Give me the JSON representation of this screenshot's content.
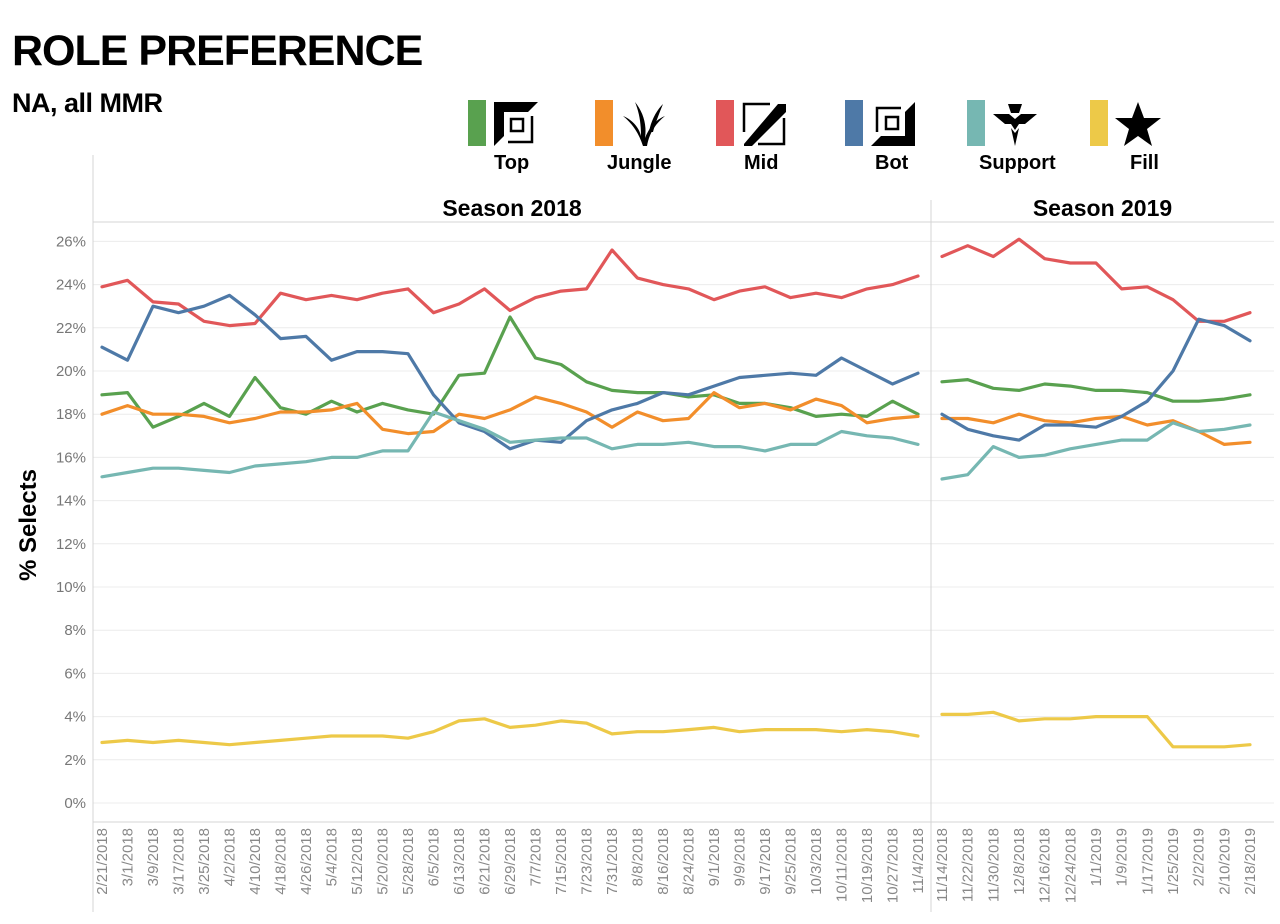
{
  "header": {
    "title": "ROLE PREFERENCE",
    "subtitle": "NA, all MMR"
  },
  "legend": [
    {
      "name": "Top",
      "color": "#59a14f",
      "icon": "top-lane-icon"
    },
    {
      "name": "Jungle",
      "color": "#f28e2b",
      "icon": "jungle-icon"
    },
    {
      "name": "Mid",
      "color": "#e15759",
      "icon": "mid-lane-icon"
    },
    {
      "name": "Bot",
      "color": "#4e79a7",
      "icon": "bot-lane-icon"
    },
    {
      "name": "Support",
      "color": "#76b7b2",
      "icon": "support-icon"
    },
    {
      "name": "Fill",
      "color": "#edc948",
      "icon": "star-icon"
    }
  ],
  "chart_data": {
    "type": "line",
    "ylabel": "% Selects",
    "ylim": [
      0,
      27
    ],
    "yticks": [
      "0%",
      "2%",
      "4%",
      "6%",
      "8%",
      "10%",
      "12%",
      "14%",
      "16%",
      "18%",
      "20%",
      "22%",
      "24%",
      "26%"
    ],
    "grid": true,
    "panels": [
      {
        "name": "Season 2018",
        "x": [
          "2/21/2018",
          "3/1/2018",
          "3/9/2018",
          "3/17/2018",
          "3/25/2018",
          "4/2/2018",
          "4/10/2018",
          "4/18/2018",
          "4/26/2018",
          "5/4/2018",
          "5/12/2018",
          "5/20/2018",
          "5/28/2018",
          "6/5/2018",
          "6/13/2018",
          "6/21/2018",
          "6/29/2018",
          "7/7/2018",
          "7/15/2018",
          "7/23/2018",
          "7/31/2018",
          "8/8/2018",
          "8/16/2018",
          "8/24/2018",
          "9/1/2018",
          "9/9/2018",
          "9/17/2018",
          "9/25/2018",
          "10/3/2018",
          "10/11/2018",
          "10/19/2018",
          "10/27/2018",
          "11/4/2018"
        ],
        "series": [
          {
            "name": "Top",
            "values": [
              18.9,
              19.0,
              17.4,
              17.9,
              18.5,
              17.9,
              19.7,
              18.3,
              18.0,
              18.6,
              18.1,
              18.5,
              18.2,
              18.0,
              19.8,
              19.9,
              22.5,
              20.6,
              20.3,
              19.5,
              19.1,
              19.0,
              19.0,
              18.8,
              18.9,
              18.5,
              18.5,
              18.3,
              17.9,
              18.0,
              17.9,
              18.6,
              18.0
            ]
          },
          {
            "name": "Jungle",
            "values": [
              18.0,
              18.4,
              18.0,
              18.0,
              17.9,
              17.6,
              17.8,
              18.1,
              18.1,
              18.2,
              18.5,
              17.3,
              17.1,
              17.2,
              18.0,
              17.8,
              18.2,
              18.8,
              18.5,
              18.1,
              17.4,
              18.1,
              17.7,
              17.8,
              19.0,
              18.3,
              18.5,
              18.2,
              18.7,
              18.4,
              17.6,
              17.8,
              17.9
            ]
          },
          {
            "name": "Mid",
            "values": [
              23.9,
              24.2,
              23.2,
              23.1,
              22.3,
              22.1,
              22.2,
              23.6,
              23.3,
              23.5,
              23.3,
              23.6,
              23.8,
              22.7,
              23.1,
              23.8,
              22.8,
              23.4,
              23.7,
              23.8,
              25.6,
              24.3,
              24.0,
              23.8,
              23.3,
              23.7,
              23.9,
              23.4,
              23.6,
              23.4,
              23.8,
              24.0,
              24.4
            ]
          },
          {
            "name": "Bot",
            "values": [
              21.1,
              20.5,
              23.0,
              22.7,
              23.0,
              23.5,
              22.6,
              21.5,
              21.6,
              20.5,
              20.9,
              20.9,
              20.8,
              18.9,
              17.6,
              17.2,
              16.4,
              16.8,
              16.7,
              17.7,
              18.2,
              18.5,
              19.0,
              18.9,
              19.3,
              19.7,
              19.8,
              19.9,
              19.8,
              20.6,
              20.0,
              19.4,
              19.9
            ]
          },
          {
            "name": "Support",
            "values": [
              15.1,
              15.3,
              15.5,
              15.5,
              15.4,
              15.3,
              15.6,
              15.7,
              15.8,
              16.0,
              16.0,
              16.3,
              16.3,
              18.1,
              17.7,
              17.3,
              16.7,
              16.8,
              16.9,
              16.9,
              16.4,
              16.6,
              16.6,
              16.7,
              16.5,
              16.5,
              16.3,
              16.6,
              16.6,
              17.2,
              17.0,
              16.9,
              16.6
            ]
          },
          {
            "name": "Fill",
            "values": [
              2.8,
              2.9,
              2.8,
              2.9,
              2.8,
              2.7,
              2.8,
              2.9,
              3.0,
              3.1,
              3.1,
              3.1,
              3.0,
              3.3,
              3.8,
              3.9,
              3.5,
              3.6,
              3.8,
              3.7,
              3.2,
              3.3,
              3.3,
              3.4,
              3.5,
              3.3,
              3.4,
              3.4,
              3.4,
              3.3,
              3.4,
              3.3,
              3.1
            ]
          }
        ]
      },
      {
        "name": "Season 2019",
        "x": [
          "11/14/2018",
          "11/22/2018",
          "11/30/2018",
          "12/8/2018",
          "12/16/2018",
          "12/24/2018",
          "1/1/2019",
          "1/9/2019",
          "1/17/2019",
          "1/25/2019",
          "2/2/2019",
          "2/10/2019",
          "2/18/2019"
        ],
        "series": [
          {
            "name": "Top",
            "values": [
              19.5,
              19.6,
              19.2,
              19.1,
              19.4,
              19.3,
              19.1,
              19.1,
              19.0,
              18.6,
              18.6,
              18.7,
              18.9
            ]
          },
          {
            "name": "Jungle",
            "values": [
              17.8,
              17.8,
              17.6,
              18.0,
              17.7,
              17.6,
              17.8,
              17.9,
              17.5,
              17.7,
              17.2,
              16.6,
              16.7
            ]
          },
          {
            "name": "Mid",
            "values": [
              25.3,
              25.8,
              25.3,
              26.1,
              25.2,
              25.0,
              25.0,
              23.8,
              23.9,
              23.3,
              22.3,
              22.3,
              22.7
            ]
          },
          {
            "name": "Bot",
            "values": [
              18.0,
              17.3,
              17.0,
              16.8,
              17.5,
              17.5,
              17.4,
              17.9,
              18.6,
              20.0,
              22.4,
              22.1,
              21.4
            ]
          },
          {
            "name": "Support",
            "values": [
              15.0,
              15.2,
              16.5,
              16.0,
              16.1,
              16.4,
              16.6,
              16.8,
              16.8,
              17.6,
              17.2,
              17.3,
              17.5
            ]
          },
          {
            "name": "Fill",
            "values": [
              4.1,
              4.1,
              4.2,
              3.8,
              3.9,
              3.9,
              4.0,
              4.0,
              4.0,
              2.6,
              2.6,
              2.6,
              2.7
            ]
          }
        ]
      }
    ]
  }
}
